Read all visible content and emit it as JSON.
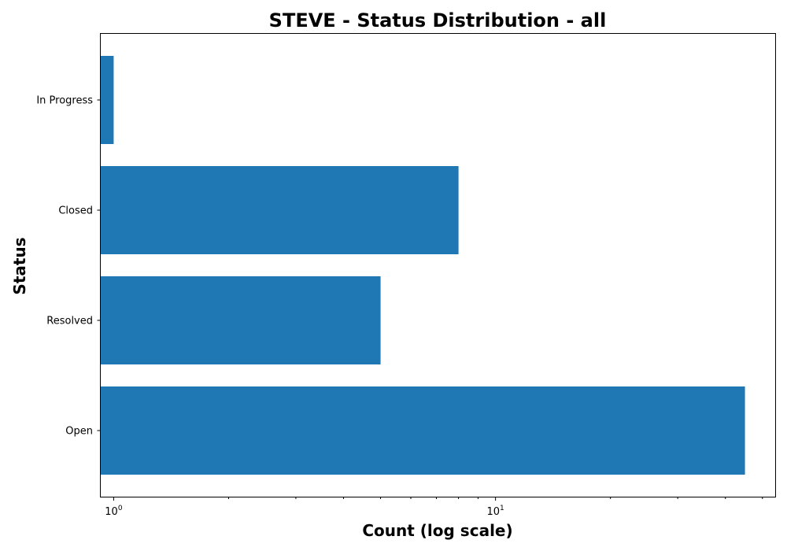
{
  "chart_data": {
    "type": "bar",
    "orientation": "horizontal",
    "title": "STEVE - Status Distribution - all",
    "xlabel": "Count (log scale)",
    "ylabel": "Status",
    "xscale": "log",
    "xlim": [
      0.925,
      54
    ],
    "categories": [
      "Open",
      "Resolved",
      "Closed",
      "In Progress"
    ],
    "values": [
      45,
      5,
      8,
      1
    ],
    "xticks": [
      {
        "value": 1,
        "base": "10",
        "exp": "0"
      },
      {
        "value": 10,
        "base": "10",
        "exp": "1"
      }
    ],
    "color": "#1f77b4",
    "grid": false
  }
}
